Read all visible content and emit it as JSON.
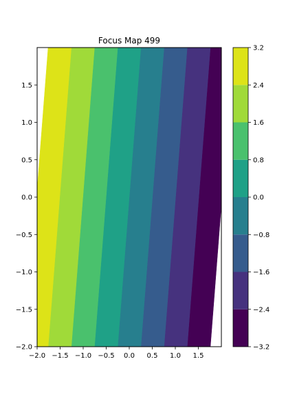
{
  "chart_data": {
    "type": "contourf",
    "title": "Focus Map 499",
    "xlabel": "",
    "ylabel": "",
    "xlim": [
      -2.0,
      2.0
    ],
    "ylim": [
      -2.0,
      2.0
    ],
    "x_ticks": [
      -2.0,
      -1.5,
      -1.0,
      -0.5,
      0.0,
      0.5,
      1.0,
      1.5
    ],
    "x_tick_labels": [
      "−2.0",
      "−1.5",
      "−1.0",
      "−0.5",
      "0.0",
      "0.5",
      "1.0",
      "1.5"
    ],
    "y_ticks": [
      -2.0,
      -1.5,
      -1.0,
      -0.5,
      0.0,
      0.5,
      1.0,
      1.5
    ],
    "y_tick_labels": [
      "−2.0",
      "−1.5",
      "−1.0",
      "−0.5",
      "0.0",
      "0.5",
      "1.0",
      "1.5"
    ],
    "grid": false,
    "field": {
      "description_of_values": "plane z = a*x + b*y",
      "a": -1.59,
      "b": 0.2
    },
    "levels": [
      -3.2,
      -2.4,
      -1.6,
      -0.8,
      0.0,
      0.8,
      1.6,
      2.4,
      3.2
    ],
    "level_colors": [
      "#440154",
      "#46327e",
      "#365c8d",
      "#277f8e",
      "#1fa187",
      "#4ac16d",
      "#a0da39",
      "#dde318"
    ],
    "colorbar": {
      "position": "right",
      "tick_values": [
        -3.2,
        -2.4,
        -1.6,
        -0.8,
        0.0,
        0.8,
        1.6,
        2.4,
        3.2
      ],
      "tick_labels": [
        "−3.2",
        "−2.4",
        "−1.6",
        "−0.8",
        "0.0",
        "0.8",
        "1.6",
        "2.4",
        "3.2"
      ]
    }
  }
}
